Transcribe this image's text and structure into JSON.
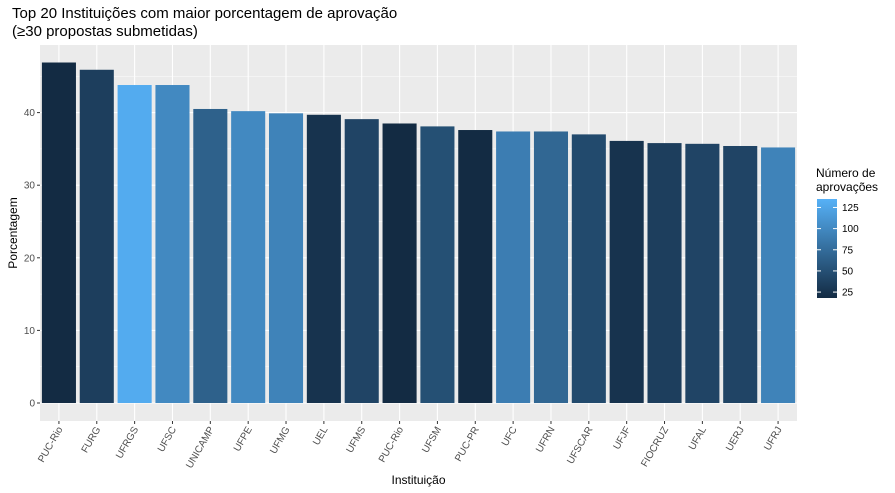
{
  "chart_data": {
    "type": "bar",
    "title_line1": "Top 20 Instituições com maior porcentagem de aprovação",
    "title_line2": "(≥30 propostas submetidas)",
    "xlabel": "Instituição",
    "ylabel": "Porcentagem",
    "ylim": [
      0,
      48
    ],
    "yticks": [
      0,
      10,
      20,
      30,
      40
    ],
    "grid": true,
    "categories": [
      "PUC-Rio",
      "FURG",
      "UFRGS",
      "UFSC",
      "UNICAMP",
      "UFPE",
      "UFMG",
      "UEL",
      "UFMS",
      "PUC-Rio",
      "UFSM",
      "PUC-PR",
      "UFC",
      "UFRN",
      "UFSCAR",
      "UFJF",
      "FIOCRUZ",
      "UFAL",
      "UERJ",
      "UFRJ"
    ],
    "values": [
      46.9,
      45.9,
      43.8,
      43.8,
      40.5,
      40.2,
      39.9,
      39.7,
      39.1,
      38.5,
      38.1,
      37.6,
      37.4,
      37.4,
      37.0,
      36.1,
      35.8,
      35.7,
      35.4,
      35.2
    ],
    "color_values": [
      18,
      35,
      130,
      100,
      65,
      100,
      95,
      25,
      40,
      18,
      50,
      18,
      90,
      70,
      45,
      25,
      35,
      40,
      40,
      95
    ],
    "legend": {
      "title_line1": "Número de",
      "title_line2": "aprovações",
      "ticks": [
        25,
        50,
        75,
        100,
        125
      ],
      "range": [
        18,
        135
      ],
      "color_low": "#132B43",
      "color_high": "#56B1F7",
      "placement": "right"
    },
    "panel_color": "#EBEBEB",
    "grid_color": "#FFFFFF"
  }
}
